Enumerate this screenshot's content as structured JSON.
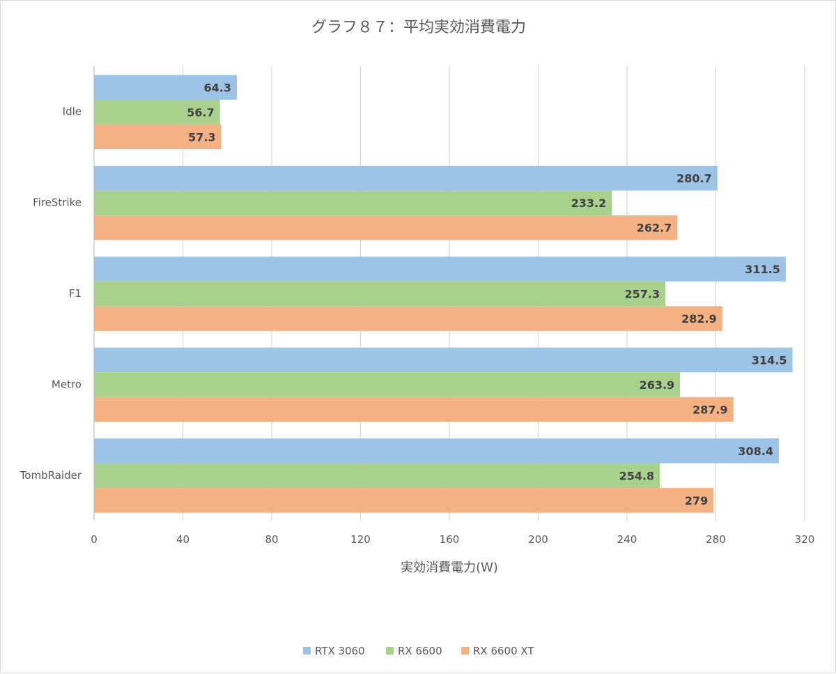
{
  "chart_data": {
    "type": "bar",
    "orientation": "horizontal",
    "title": "グラフ８７：平均実効消費電力",
    "xlabel": "実効消費電力(W)",
    "ylabel": "",
    "categories": [
      "Idle",
      "FireStrike",
      "F1",
      "Metro",
      "TombRaider"
    ],
    "series": [
      {
        "name": "RTX 3060",
        "color": "#9dc3e6",
        "values": [
          64.3,
          280.7,
          311.5,
          314.5,
          308.4
        ],
        "labels": [
          "64.3",
          "280.7",
          "311.5",
          "314.5",
          "308.4"
        ]
      },
      {
        "name": "RX 6600",
        "color": "#a9d18e",
        "values": [
          56.7,
          233.2,
          257.3,
          263.9,
          254.8
        ],
        "labels": [
          "56.7",
          "233.2",
          "257.3",
          "263.9",
          "254.8"
        ]
      },
      {
        "name": "RX 6600 XT",
        "color": "#f4b183",
        "values": [
          57.3,
          262.7,
          282.9,
          287.9,
          279
        ],
        "labels": [
          "57.3",
          "262.7",
          "282.9",
          "287.9",
          "279"
        ]
      }
    ],
    "xlim": [
      0,
      320
    ],
    "xticks": [
      "0",
      "40",
      "80",
      "120",
      "160",
      "200",
      "240",
      "280",
      "320"
    ],
    "grid": true,
    "legend": "bottom",
    "data_labels": true
  }
}
